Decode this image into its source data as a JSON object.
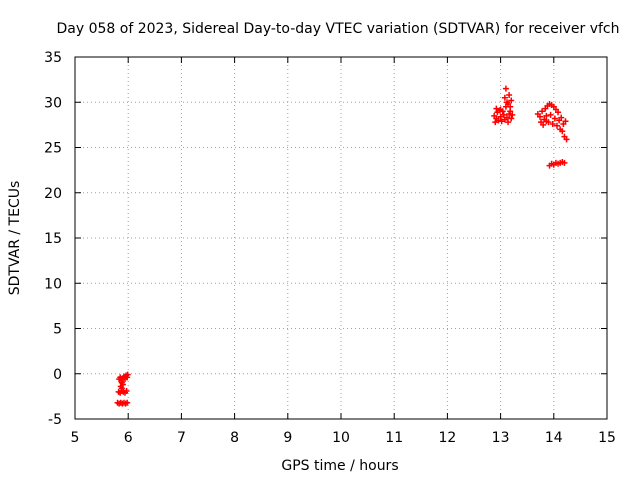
{
  "chart_data": {
    "type": "scatter",
    "title": "Day 058 of 2023, Sidereal Day-to-day VTEC variation (SDTVAR) for receiver vfch",
    "xlabel": "GPS time / hours",
    "ylabel": "SDTVAR / TECUs",
    "xlim": [
      5,
      15
    ],
    "ylim": [
      -5,
      35
    ],
    "xticks": [
      5,
      6,
      7,
      8,
      9,
      10,
      11,
      12,
      13,
      14,
      15
    ],
    "yticks": [
      -5,
      0,
      5,
      10,
      15,
      20,
      25,
      30,
      35
    ],
    "grid": true,
    "marker": "+",
    "marker_color": "#ff0000",
    "series": [
      {
        "name": "vfch",
        "points": [
          [
            5.83,
            -0.6
          ],
          [
            5.85,
            -0.4
          ],
          [
            5.87,
            -0.8
          ],
          [
            5.88,
            -1.0
          ],
          [
            5.9,
            -0.5
          ],
          [
            5.92,
            -0.3
          ],
          [
            5.94,
            -0.6
          ],
          [
            5.96,
            -0.2
          ],
          [
            5.98,
            -0.4
          ],
          [
            5.99,
            -0.1
          ],
          [
            5.86,
            -1.4
          ],
          [
            5.88,
            -1.6
          ],
          [
            5.9,
            -1.2
          ],
          [
            5.82,
            -2.0
          ],
          [
            5.85,
            -2.1
          ],
          [
            5.88,
            -1.9
          ],
          [
            5.91,
            -2.0
          ],
          [
            5.94,
            -2.1
          ],
          [
            5.97,
            -1.9
          ],
          [
            5.8,
            -3.2
          ],
          [
            5.83,
            -3.3
          ],
          [
            5.86,
            -3.2
          ],
          [
            5.89,
            -3.3
          ],
          [
            5.92,
            -3.2
          ],
          [
            5.95,
            -3.3
          ],
          [
            5.98,
            -3.2
          ],
          [
            12.88,
            28.5
          ],
          [
            12.9,
            27.8
          ],
          [
            12.92,
            29.3
          ],
          [
            12.94,
            28.9
          ],
          [
            12.96,
            28.0
          ],
          [
            12.98,
            29.1
          ],
          [
            13.0,
            28.4
          ],
          [
            13.02,
            27.9
          ],
          [
            13.04,
            29.0
          ],
          [
            13.06,
            28.6
          ],
          [
            13.08,
            28.1
          ],
          [
            13.1,
            29.5
          ],
          [
            13.12,
            28.3
          ],
          [
            13.14,
            27.8
          ],
          [
            13.16,
            28.7
          ],
          [
            13.18,
            29.0
          ],
          [
            13.2,
            28.2
          ],
          [
            13.22,
            28.6
          ],
          [
            12.92,
            28.2
          ],
          [
            13.0,
            29.2
          ],
          [
            13.08,
            30.5
          ],
          [
            13.1,
            31.5
          ],
          [
            13.12,
            30.0
          ],
          [
            13.14,
            29.8
          ],
          [
            13.16,
            30.8
          ],
          [
            13.18,
            29.5
          ],
          [
            13.2,
            30.2
          ],
          [
            13.7,
            28.7
          ],
          [
            13.74,
            28.4
          ],
          [
            13.78,
            29.0
          ],
          [
            13.82,
            28.1
          ],
          [
            13.84,
            29.3
          ],
          [
            13.86,
            28.5
          ],
          [
            13.88,
            29.6
          ],
          [
            13.9,
            27.8
          ],
          [
            13.92,
            29.8
          ],
          [
            13.94,
            28.6
          ],
          [
            13.96,
            29.7
          ],
          [
            13.98,
            27.6
          ],
          [
            14.0,
            29.5
          ],
          [
            14.02,
            28.2
          ],
          [
            14.04,
            29.2
          ],
          [
            14.06,
            27.4
          ],
          [
            14.08,
            28.9
          ],
          [
            14.1,
            28.0
          ],
          [
            14.12,
            27.0
          ],
          [
            14.14,
            28.3
          ],
          [
            14.16,
            26.8
          ],
          [
            14.18,
            27.6
          ],
          [
            14.2,
            26.2
          ],
          [
            14.22,
            27.9
          ],
          [
            14.24,
            25.9
          ],
          [
            13.76,
            27.8
          ],
          [
            13.8,
            27.5
          ],
          [
            13.86,
            27.9
          ],
          [
            13.92,
            23.0
          ],
          [
            13.96,
            23.2
          ],
          [
            14.0,
            23.1
          ],
          [
            14.04,
            23.3
          ],
          [
            14.08,
            23.2
          ],
          [
            14.12,
            23.3
          ],
          [
            14.16,
            23.4
          ],
          [
            14.2,
            23.3
          ]
        ]
      }
    ]
  }
}
